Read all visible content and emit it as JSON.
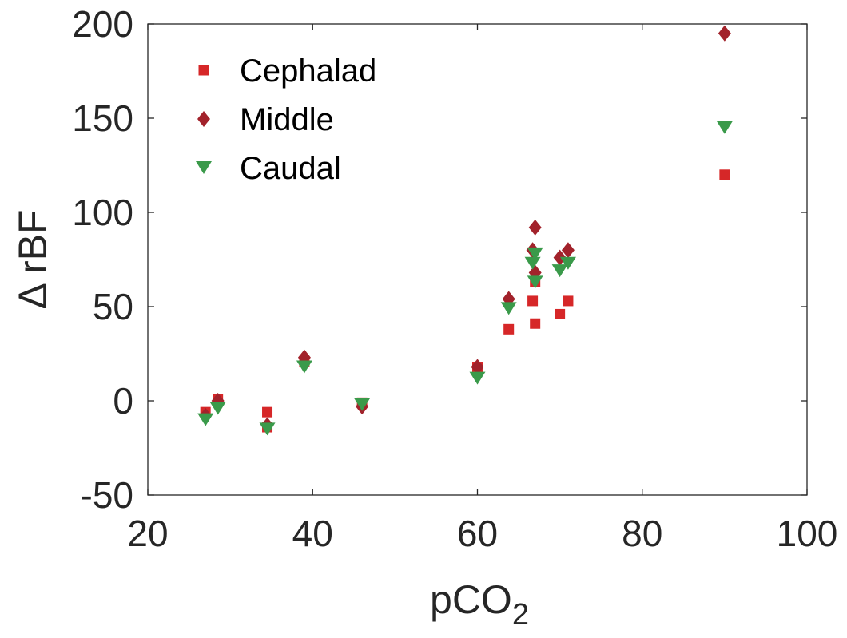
{
  "chart_data": {
    "type": "scatter",
    "xlabel": "pCO",
    "xlabel_subscript": "2",
    "ylabel": "Δ rBF",
    "xlim": [
      20,
      100
    ],
    "ylim": [
      -50,
      200
    ],
    "x_ticks": [
      20,
      40,
      60,
      80,
      100
    ],
    "y_ticks": [
      -50,
      0,
      50,
      100,
      150,
      200
    ],
    "x_tick_labels": [
      "20",
      "40",
      "60",
      "80",
      "100"
    ],
    "y_tick_labels": [
      "-50",
      "0",
      "50",
      "100",
      "150",
      "200"
    ],
    "grid": false,
    "legend_position": "top-left",
    "series": [
      {
        "name": "Cephalad",
        "marker": "square",
        "color": "#d62728",
        "points": [
          [
            27,
            -6
          ],
          [
            28.5,
            1
          ],
          [
            34.5,
            -6
          ],
          [
            34.5,
            -14
          ],
          [
            39,
            21
          ],
          [
            46,
            -1
          ],
          [
            60,
            18
          ],
          [
            63.8,
            38
          ],
          [
            66.7,
            53
          ],
          [
            67,
            41
          ],
          [
            67,
            63
          ],
          [
            70,
            46
          ],
          [
            71,
            53
          ],
          [
            90,
            120
          ]
        ]
      },
      {
        "name": "Middle",
        "marker": "diamond",
        "color": "#a2222b",
        "points": [
          [
            27,
            -8
          ],
          [
            28.5,
            0
          ],
          [
            34.5,
            -13
          ],
          [
            39,
            23
          ],
          [
            46,
            -3
          ],
          [
            60,
            18
          ],
          [
            63.8,
            54
          ],
          [
            66.7,
            80
          ],
          [
            67,
            92
          ],
          [
            67,
            68
          ],
          [
            70,
            76
          ],
          [
            71,
            80
          ],
          [
            90,
            195
          ]
        ]
      },
      {
        "name": "Caudal",
        "marker": "triangle-down",
        "color": "#3a9a4a",
        "points": [
          [
            27,
            -10
          ],
          [
            28.5,
            -4
          ],
          [
            34.5,
            -15
          ],
          [
            39,
            18
          ],
          [
            46,
            -2
          ],
          [
            60,
            12
          ],
          [
            63.8,
            49
          ],
          [
            66.7,
            73
          ],
          [
            67,
            78
          ],
          [
            67,
            63
          ],
          [
            70,
            69
          ],
          [
            71,
            73
          ],
          [
            90,
            145
          ]
        ]
      }
    ]
  }
}
